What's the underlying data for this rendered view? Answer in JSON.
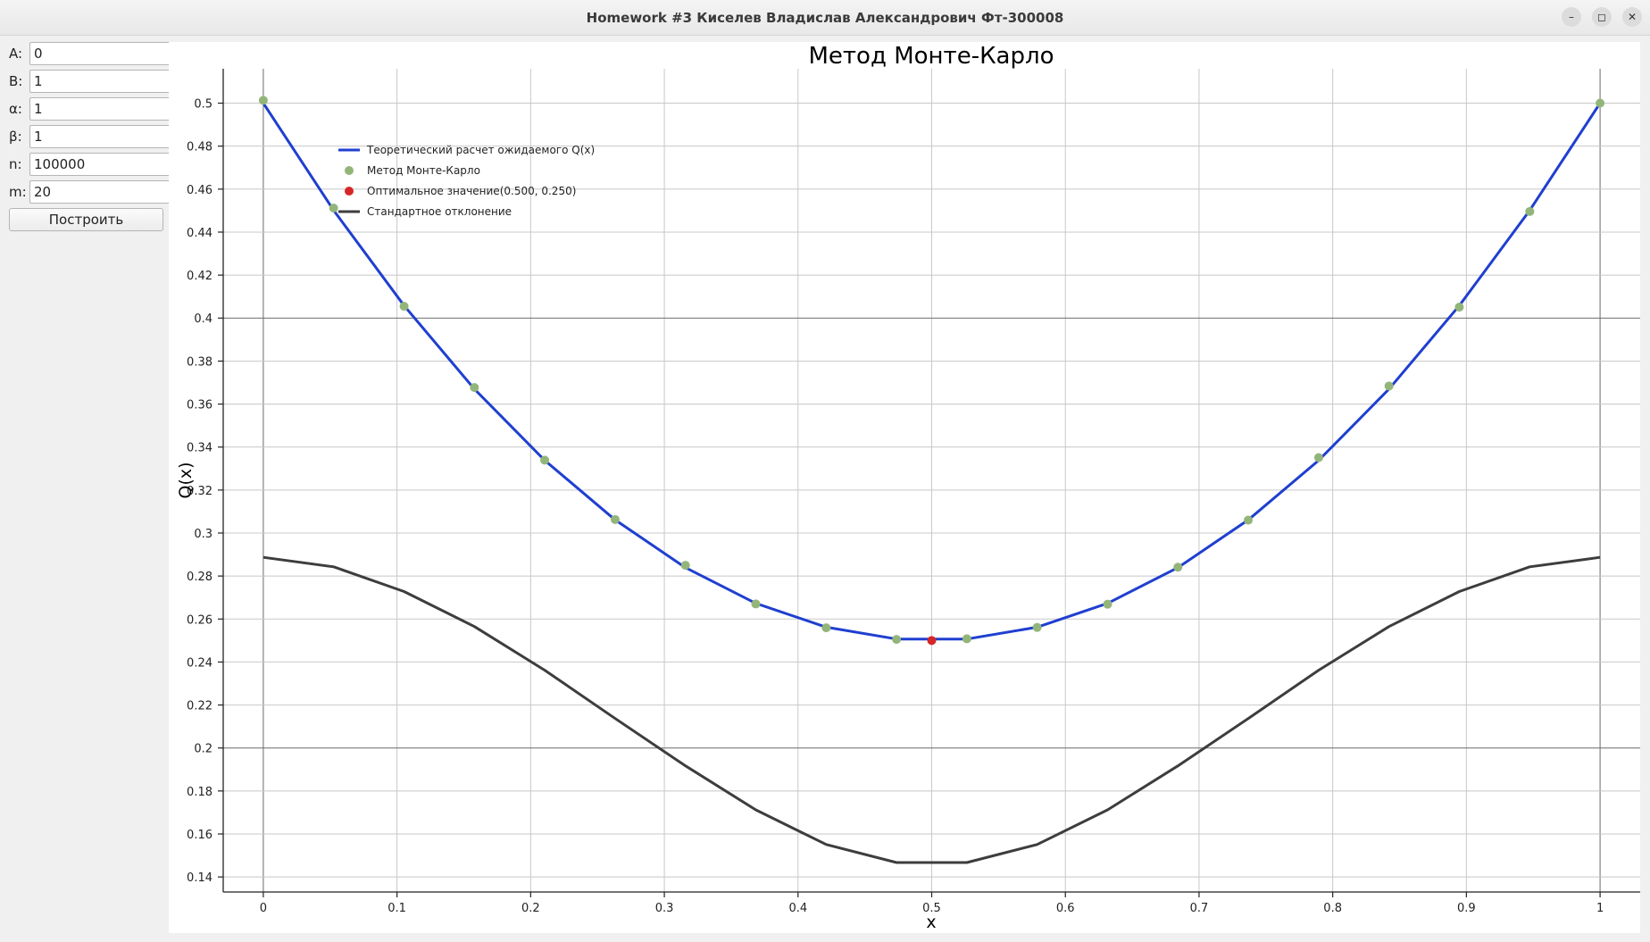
{
  "window": {
    "title": "Homework #3 Киселев Владислав Александрович Фт-300008"
  },
  "form": {
    "fields": [
      {
        "label": "A:",
        "value": "0"
      },
      {
        "label": "B:",
        "value": "1"
      },
      {
        "label": "α:",
        "value": "1"
      },
      {
        "label": "β:",
        "value": "1"
      },
      {
        "label": "n:",
        "value": "100000"
      },
      {
        "label": "m:",
        "value": "20"
      }
    ],
    "build_label": "Построить"
  },
  "chart_data": {
    "type": "line",
    "title": "Метод Монте-Карло",
    "xlabel": "x",
    "ylabel": "Q(x)",
    "xlim": [
      -0.03,
      1.03
    ],
    "ylim": [
      0.133,
      0.516
    ],
    "xticks": [
      0,
      0.1,
      0.2,
      0.3,
      0.4,
      0.5,
      0.6,
      0.7,
      0.8,
      0.9,
      1
    ],
    "xtick_labels": [
      "0",
      "0.1",
      "0.2",
      "0.3",
      "0.4",
      "0.5",
      "0.6",
      "0.7",
      "0.8",
      "0.9",
      "1"
    ],
    "yticks": [
      0.14,
      0.16,
      0.18,
      0.2,
      0.22,
      0.24,
      0.26,
      0.28,
      0.3,
      0.32,
      0.34,
      0.36,
      0.38,
      0.4,
      0.42,
      0.44,
      0.46,
      0.48,
      0.5
    ],
    "ytick_labels": [
      "0.14",
      "0.16",
      "0.18",
      "0.2",
      "0.22",
      "0.24",
      "0.26",
      "0.28",
      "0.3",
      "0.32",
      "0.34",
      "0.36",
      "0.38",
      "0.4",
      "0.42",
      "0.44",
      "0.46",
      "0.48",
      "0.5"
    ],
    "grid": true,
    "legend_position": "top-left",
    "series": [
      {
        "name": "Теоретический расчет ожидаемого Q(x)",
        "kind": "line",
        "color": "#1f3fd0",
        "x": [
          0,
          0.0526,
          0.1053,
          0.1579,
          0.2105,
          0.2632,
          0.3158,
          0.3684,
          0.4211,
          0.4737,
          0.5263,
          0.5789,
          0.6316,
          0.6842,
          0.7368,
          0.7895,
          0.8421,
          0.8947,
          0.9474,
          1
        ],
        "y": [
          0.5,
          0.4501,
          0.4058,
          0.367,
          0.3338,
          0.3061,
          0.2839,
          0.2673,
          0.2562,
          0.2507,
          0.2507,
          0.2562,
          0.2673,
          0.2839,
          0.3061,
          0.3338,
          0.367,
          0.4058,
          0.4501,
          0.5
        ]
      },
      {
        "name": "Метод Монте-Карло",
        "kind": "scatter",
        "color": "#93b57a",
        "x": [
          0,
          0.0526,
          0.1053,
          0.1579,
          0.2105,
          0.2632,
          0.3158,
          0.3684,
          0.4211,
          0.4737,
          0.5263,
          0.5789,
          0.6316,
          0.6842,
          0.7368,
          0.7895,
          0.8421,
          0.8947,
          0.9474,
          1
        ],
        "y": [
          0.5013,
          0.4512,
          0.4055,
          0.3677,
          0.3339,
          0.3063,
          0.285,
          0.267,
          0.2559,
          0.2505,
          0.2508,
          0.2561,
          0.2669,
          0.2841,
          0.306,
          0.3351,
          0.3684,
          0.4051,
          0.4496,
          0.5
        ]
      },
      {
        "name": "Оптимальное значение(0.500, 0.250)",
        "kind": "point",
        "color": "#d62728",
        "x": [
          0.5
        ],
        "y": [
          0.25
        ]
      },
      {
        "name": "Стандартное отклонение",
        "kind": "line",
        "color": "#3d3d3d",
        "x": [
          0,
          0.0526,
          0.1053,
          0.1579,
          0.2105,
          0.2632,
          0.3158,
          0.3684,
          0.4211,
          0.4737,
          0.5263,
          0.5789,
          0.6316,
          0.6842,
          0.7368,
          0.7895,
          0.8421,
          0.8947,
          0.9474,
          1
        ],
        "y": [
          0.2887,
          0.2843,
          0.2728,
          0.2565,
          0.2362,
          0.2137,
          0.1917,
          0.1712,
          0.1551,
          0.1467,
          0.1467,
          0.1551,
          0.1712,
          0.1917,
          0.2137,
          0.2362,
          0.2565,
          0.2728,
          0.2843,
          0.2887
        ]
      }
    ]
  }
}
